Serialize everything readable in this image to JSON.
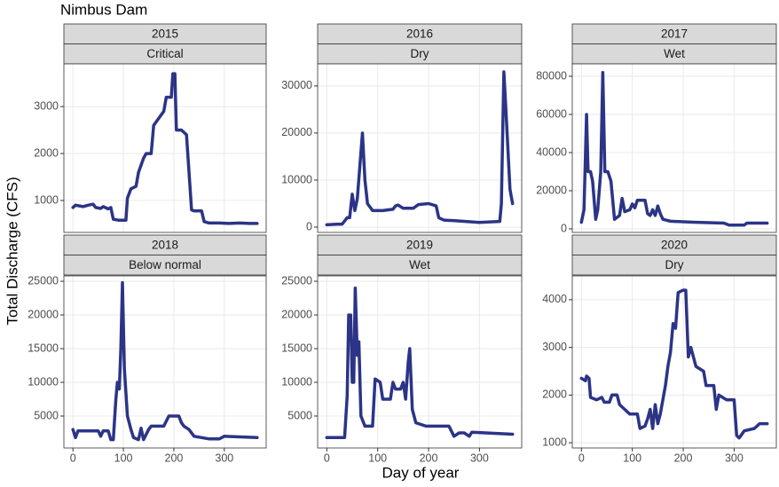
{
  "title": "Nimbus Dam",
  "y_label": "Total Discharge (CFS)",
  "x_label": "Day of year",
  "chart_data": [
    {
      "type": "line",
      "title": "2015",
      "subtitle": "Critical",
      "x": [
        0,
        5,
        20,
        30,
        40,
        45,
        55,
        60,
        70,
        75,
        80,
        90,
        100,
        105,
        108,
        115,
        125,
        130,
        140,
        145,
        155,
        160,
        170,
        180,
        185,
        195,
        198,
        202,
        205,
        215,
        225,
        235,
        240,
        255,
        260,
        270,
        290,
        310,
        330,
        350,
        365
      ],
      "series": [
        {
          "color": "#2b3486",
          "values": [
            850,
            900,
            870,
            900,
            920,
            850,
            830,
            870,
            820,
            850,
            600,
            580,
            580,
            580,
            1050,
            1250,
            1300,
            1600,
            1900,
            2000,
            2000,
            2600,
            2750,
            2900,
            3200,
            3200,
            3700,
            3700,
            2500,
            2500,
            2400,
            800,
            780,
            780,
            550,
            520,
            520,
            510,
            520,
            510,
            510
          ]
        }
      ],
      "xlim": [
        -18,
        383
      ],
      "xticks": [
        0,
        100,
        200,
        300
      ],
      "ylim": [
        320,
        3910
      ],
      "yticks": [
        1000,
        2000,
        3000
      ],
      "grid": true
    },
    {
      "type": "line",
      "title": "2016",
      "subtitle": "Dry",
      "x": [
        0,
        20,
        30,
        40,
        45,
        50,
        55,
        60,
        65,
        70,
        75,
        80,
        90,
        110,
        130,
        135,
        140,
        150,
        170,
        180,
        200,
        215,
        220,
        230,
        260,
        300,
        340,
        343,
        348,
        352,
        360,
        365
      ],
      "series": [
        {
          "color": "#2b3486",
          "values": [
            500,
            600,
            600,
            2000,
            2000,
            7000,
            3500,
            6000,
            13000,
            20000,
            10000,
            5000,
            3500,
            3500,
            3800,
            4500,
            4700,
            4000,
            4000,
            4800,
            5000,
            4500,
            2000,
            1500,
            1300,
            1000,
            1200,
            5000,
            33000,
            25000,
            8000,
            5000
          ]
        }
      ],
      "xlim": [
        -18,
        383
      ],
      "xticks": [
        0,
        100,
        200,
        300
      ],
      "ylim": [
        -1130,
        34700
      ],
      "yticks": [
        0,
        10000,
        20000,
        30000
      ],
      "grid": true
    },
    {
      "type": "line",
      "title": "2017",
      "subtitle": "Wet",
      "x": [
        0,
        5,
        10,
        13,
        18,
        22,
        28,
        32,
        38,
        42,
        46,
        52,
        58,
        65,
        75,
        80,
        85,
        95,
        100,
        105,
        110,
        125,
        130,
        135,
        140,
        145,
        150,
        155,
        160,
        175,
        220,
        280,
        290,
        320,
        325,
        365
      ],
      "series": [
        {
          "color": "#2b3486",
          "values": [
            3500,
            10000,
            60000,
            30000,
            30000,
            25000,
            5000,
            10000,
            30000,
            82000,
            30000,
            30000,
            25000,
            5000,
            7000,
            16000,
            9000,
            10000,
            13000,
            11000,
            15000,
            15000,
            8000,
            7000,
            10000,
            7000,
            12000,
            8000,
            5000,
            4000,
            3500,
            3000,
            2000,
            2000,
            3000,
            3000
          ]
        }
      ],
      "xlim": [
        -18,
        383
      ],
      "xticks": [
        0,
        100,
        200,
        300
      ],
      "ylim": [
        -1860,
        86500
      ],
      "yticks": [
        0,
        20000,
        40000,
        60000,
        80000
      ],
      "grid": true
    },
    {
      "type": "line",
      "title": "2018",
      "subtitle": "Below normal",
      "x": [
        0,
        5,
        10,
        30,
        50,
        55,
        60,
        70,
        75,
        80,
        85,
        88,
        92,
        95,
        98,
        102,
        108,
        115,
        120,
        130,
        135,
        140,
        150,
        155,
        180,
        190,
        210,
        215,
        220,
        230,
        240,
        270,
        290,
        300,
        365
      ],
      "series": [
        {
          "color": "#2b3486",
          "values": [
            3000,
            1800,
            2800,
            2800,
            2800,
            2000,
            2800,
            2800,
            1500,
            1500,
            7500,
            10000,
            9000,
            15000,
            24800,
            12000,
            5000,
            3000,
            1800,
            1500,
            3200,
            1500,
            3000,
            3500,
            3500,
            5000,
            5000,
            4000,
            3500,
            3000,
            2000,
            1600,
            1600,
            2000,
            1800
          ]
        }
      ],
      "xlim": [
        -18,
        383
      ],
      "xticks": [
        0,
        100,
        200,
        300
      ],
      "ylim": [
        260,
        25800
      ],
      "yticks": [
        5000,
        10000,
        15000,
        20000,
        25000
      ],
      "grid": true
    },
    {
      "type": "line",
      "title": "2019",
      "subtitle": "Wet",
      "x": [
        0,
        20,
        35,
        40,
        43,
        47,
        50,
        53,
        56,
        60,
        63,
        67,
        75,
        90,
        95,
        105,
        110,
        125,
        130,
        135,
        145,
        150,
        155,
        160,
        163,
        168,
        175,
        195,
        240,
        250,
        260,
        270,
        280,
        285,
        365
      ],
      "series": [
        {
          "color": "#2b3486",
          "values": [
            1800,
            1800,
            1800,
            8000,
            20000,
            20000,
            10000,
            10000,
            24000,
            14000,
            16000,
            5000,
            3500,
            3500,
            10500,
            10000,
            7500,
            7500,
            10000,
            9000,
            9000,
            10000,
            7500,
            13000,
            15000,
            6000,
            4000,
            3500,
            3500,
            2000,
            2500,
            2500,
            2000,
            2600,
            2300
          ]
        }
      ],
      "xlim": [
        -18,
        383
      ],
      "xticks": [
        0,
        100,
        200,
        300
      ],
      "ylim": [
        260,
        25800
      ],
      "yticks": [
        5000,
        10000,
        15000,
        20000,
        25000
      ],
      "grid": true
    },
    {
      "type": "line",
      "title": "2020",
      "subtitle": "Dry",
      "x": [
        0,
        8,
        10,
        15,
        18,
        30,
        40,
        45,
        55,
        60,
        70,
        75,
        85,
        95,
        110,
        115,
        125,
        130,
        135,
        140,
        145,
        150,
        155,
        165,
        170,
        175,
        180,
        185,
        190,
        200,
        205,
        210,
        215,
        225,
        240,
        245,
        260,
        265,
        270,
        285,
        300,
        305,
        310,
        320,
        340,
        350,
        365
      ],
      "series": [
        {
          "color": "#2b3486",
          "values": [
            2350,
            2300,
            2400,
            2350,
            1950,
            1900,
            1950,
            1850,
            1850,
            2000,
            2000,
            1800,
            1700,
            1600,
            1600,
            1300,
            1350,
            1500,
            1700,
            1300,
            1800,
            1400,
            1600,
            2200,
            2600,
            2900,
            3500,
            3400,
            4150,
            4200,
            4200,
            2800,
            3000,
            2600,
            2500,
            2200,
            2200,
            1700,
            2000,
            1900,
            1900,
            1150,
            1100,
            1250,
            1300,
            1400,
            1400
          ]
        }
      ],
      "xlim": [
        -18,
        383
      ],
      "xticks": [
        0,
        100,
        200,
        300
      ],
      "ylim": [
        890,
        4500
      ],
      "yticks": [
        1000,
        2000,
        3000,
        4000
      ],
      "grid": true
    }
  ]
}
